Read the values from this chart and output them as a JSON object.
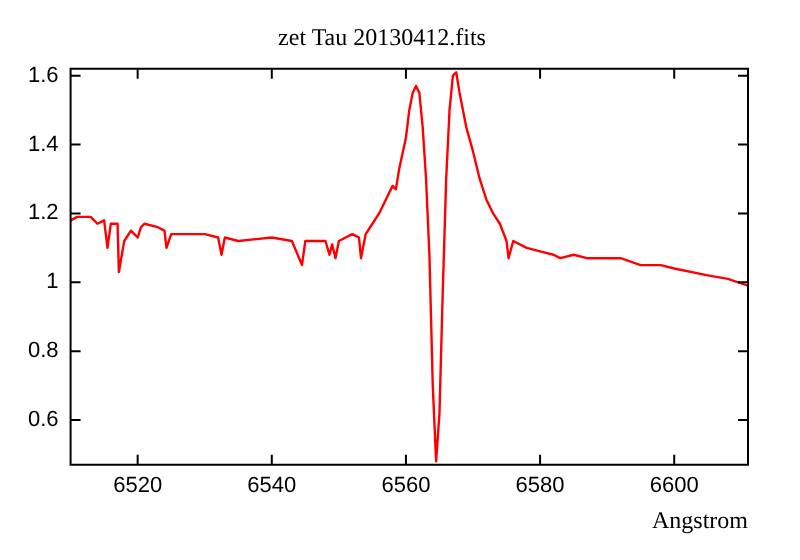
{
  "chart_data": {
    "type": "line",
    "title": "zet Tau 20130412.fits",
    "xlabel": "Angstrom",
    "x": [
      6510,
      6511,
      6513,
      6514,
      6515,
      6515.5,
      6516,
      6517,
      6517.2,
      6518,
      6519,
      6520,
      6520.5,
      6521,
      6523,
      6524,
      6524.3,
      6525,
      6530,
      6532,
      6532.5,
      6533,
      6535,
      6540,
      6543,
      6544.5,
      6545,
      6548,
      6548.6,
      6549,
      6549.5,
      6550,
      6552,
      6553,
      6553.3,
      6554,
      6555,
      6556,
      6557,
      6558,
      6558.5,
      6559,
      6560,
      6560.5,
      6561,
      6561.5,
      6562,
      6562.5,
      6563,
      6563.5,
      6564,
      6564.5,
      6565,
      6565.5,
      6566,
      6566.5,
      6567,
      6567.5,
      6568,
      6569,
      6570,
      6571,
      6572,
      6573,
      6574,
      6575,
      6575.3,
      6576,
      6578,
      6580,
      6582,
      6583,
      6585,
      6587,
      6590,
      6592,
      6595,
      6598,
      6600,
      6605,
      6608,
      6611
    ],
    "series": [
      {
        "color": "#ff0000",
        "values": [
          1.18,
          1.19,
          1.19,
          1.17,
          1.18,
          1.1,
          1.17,
          1.17,
          1.03,
          1.12,
          1.15,
          1.13,
          1.16,
          1.17,
          1.16,
          1.15,
          1.1,
          1.14,
          1.14,
          1.13,
          1.08,
          1.13,
          1.12,
          1.13,
          1.12,
          1.05,
          1.12,
          1.12,
          1.08,
          1.11,
          1.07,
          1.12,
          1.14,
          1.13,
          1.07,
          1.14,
          1.17,
          1.2,
          1.24,
          1.28,
          1.27,
          1.33,
          1.42,
          1.5,
          1.55,
          1.57,
          1.55,
          1.45,
          1.3,
          1.08,
          0.7,
          0.48,
          0.62,
          0.98,
          1.3,
          1.5,
          1.6,
          1.61,
          1.55,
          1.45,
          1.38,
          1.3,
          1.24,
          1.2,
          1.17,
          1.12,
          1.07,
          1.12,
          1.1,
          1.09,
          1.08,
          1.07,
          1.08,
          1.07,
          1.07,
          1.07,
          1.05,
          1.05,
          1.04,
          1.02,
          1.01,
          0.99
        ]
      }
    ],
    "xlim": [
      6510,
      6611
    ],
    "xticks": [
      6520,
      6540,
      6560,
      6580,
      6600
    ],
    "ylim": [
      0.47,
      1.62
    ],
    "yticks": [
      0.6,
      0.8,
      1,
      1.2,
      1.4,
      1.6
    ],
    "grid": false,
    "legend": false,
    "marker": "none",
    "line_style": "solid"
  }
}
